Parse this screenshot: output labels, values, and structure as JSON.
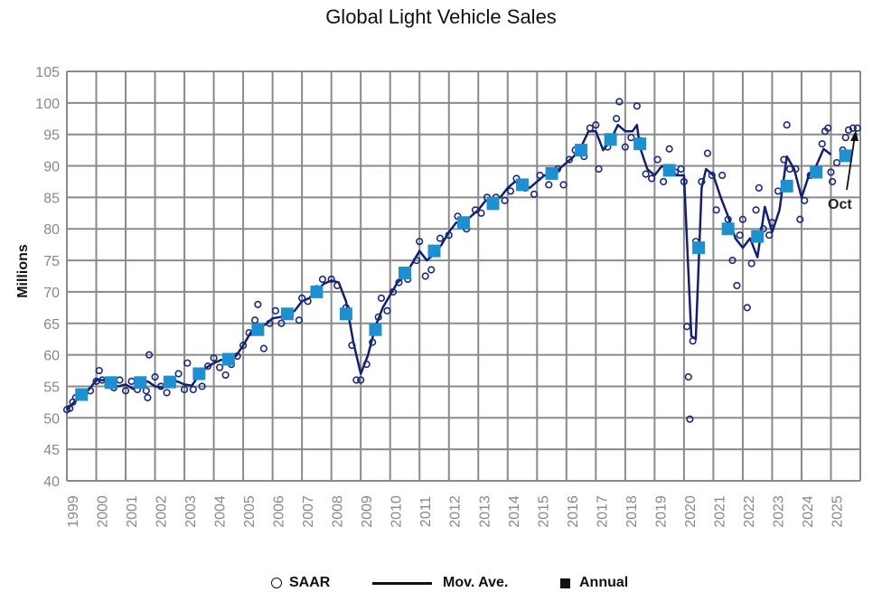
{
  "chart_data": {
    "type": "line",
    "title": "Global Light Vehicle Sales",
    "ylabel": "Millions",
    "xlabel": "",
    "ylim": [
      40,
      105
    ],
    "yticks": [
      40,
      45,
      50,
      55,
      60,
      65,
      70,
      75,
      80,
      85,
      90,
      95,
      100,
      105
    ],
    "xlim": [
      1999,
      2026
    ],
    "xticks": [
      "1999",
      "2000",
      "2001",
      "2002",
      "2003",
      "2004",
      "2005",
      "2006",
      "2007",
      "2008",
      "2009",
      "2010",
      "2011",
      "2012",
      "2013",
      "2014",
      "2015",
      "2016",
      "2017",
      "2018",
      "2019",
      "2020",
      "2021",
      "2022",
      "2023",
      "2024",
      "2025"
    ],
    "grid": true,
    "legend": {
      "placement": "bottom",
      "entries": [
        "SAAR",
        "Mov. Ave.",
        "Annual"
      ]
    },
    "annotation": "Oct",
    "colors": {
      "saar": "#1a2a7a",
      "mov_ave": "#14206e",
      "annual": "#1e90d0",
      "grid": "#8a8a8a"
    },
    "series": [
      {
        "name": "Mov. Ave.",
        "type": "line",
        "points": [
          [
            1999.0,
            51.3
          ],
          [
            1999.25,
            52.5
          ],
          [
            1999.5,
            53.5
          ],
          [
            1999.75,
            54.5
          ],
          [
            2000.0,
            56
          ],
          [
            2000.25,
            56
          ],
          [
            2000.5,
            55.3
          ],
          [
            2000.75,
            55
          ],
          [
            2001.0,
            55.3
          ],
          [
            2001.25,
            54.6
          ],
          [
            2001.5,
            55.3
          ],
          [
            2001.75,
            55.8
          ],
          [
            2002.0,
            55
          ],
          [
            2002.25,
            54.8
          ],
          [
            2002.5,
            55.3
          ],
          [
            2002.75,
            55.8
          ],
          [
            2003.0,
            55.3
          ],
          [
            2003.25,
            55.1
          ],
          [
            2003.5,
            56.8
          ],
          [
            2003.75,
            58
          ],
          [
            2004.0,
            58.7
          ],
          [
            2004.25,
            59.2
          ],
          [
            2004.5,
            59.2
          ],
          [
            2004.75,
            59.8
          ],
          [
            2005.0,
            61.5
          ],
          [
            2005.25,
            63.5
          ],
          [
            2005.5,
            64.5
          ],
          [
            2005.75,
            64.8
          ],
          [
            2006.0,
            65.8
          ],
          [
            2006.25,
            66
          ],
          [
            2006.5,
            66.3
          ],
          [
            2006.75,
            67
          ],
          [
            2007.0,
            68.5
          ],
          [
            2007.25,
            69
          ],
          [
            2007.5,
            70.2
          ],
          [
            2007.75,
            71.3
          ],
          [
            2008.0,
            71.8
          ],
          [
            2008.25,
            71.5
          ],
          [
            2008.5,
            68.5
          ],
          [
            2008.75,
            62
          ],
          [
            2009.0,
            57
          ],
          [
            2009.25,
            60
          ],
          [
            2009.5,
            64.5
          ],
          [
            2009.75,
            67.5
          ],
          [
            2010.0,
            69.5
          ],
          [
            2010.25,
            71.5
          ],
          [
            2010.5,
            72.5
          ],
          [
            2010.75,
            74.5
          ],
          [
            2011.0,
            76.5
          ],
          [
            2011.25,
            75
          ],
          [
            2011.5,
            76
          ],
          [
            2011.75,
            77.5
          ],
          [
            2012.0,
            79.5
          ],
          [
            2012.25,
            81
          ],
          [
            2012.5,
            81
          ],
          [
            2012.75,
            82
          ],
          [
            2013.0,
            83
          ],
          [
            2013.25,
            84.5
          ],
          [
            2013.5,
            84.5
          ],
          [
            2013.75,
            85
          ],
          [
            2014.0,
            86.5
          ],
          [
            2014.25,
            87.5
          ],
          [
            2014.5,
            87
          ],
          [
            2014.75,
            86.5
          ],
          [
            2015.0,
            87.5
          ],
          [
            2015.25,
            88.5
          ],
          [
            2015.5,
            88.5
          ],
          [
            2015.75,
            89.5
          ],
          [
            2016.0,
            90.5
          ],
          [
            2016.25,
            91.5
          ],
          [
            2016.5,
            93
          ],
          [
            2016.75,
            95.5
          ],
          [
            2017.0,
            95.5
          ],
          [
            2017.25,
            92.5
          ],
          [
            2017.5,
            94
          ],
          [
            2017.75,
            96.5
          ],
          [
            2018.0,
            95.5
          ],
          [
            2018.25,
            95.5
          ],
          [
            2018.4,
            96.5
          ],
          [
            2018.5,
            93
          ],
          [
            2018.75,
            89.5
          ],
          [
            2019.0,
            88.5
          ],
          [
            2019.25,
            90
          ],
          [
            2019.5,
            89.5
          ],
          [
            2019.75,
            88.5
          ],
          [
            2020.0,
            88.5
          ],
          [
            2020.25,
            63
          ],
          [
            2020.4,
            62.5
          ],
          [
            2020.6,
            86.5
          ],
          [
            2020.75,
            89.5
          ],
          [
            2021.0,
            88.5
          ],
          [
            2021.25,
            85
          ],
          [
            2021.5,
            82
          ],
          [
            2021.75,
            78.5
          ],
          [
            2022.0,
            77
          ],
          [
            2022.25,
            78.5
          ],
          [
            2022.5,
            75.5
          ],
          [
            2022.75,
            83.5
          ],
          [
            2023.0,
            79.5
          ],
          [
            2023.25,
            83
          ],
          [
            2023.5,
            91.5
          ],
          [
            2023.75,
            89.5
          ],
          [
            2024.0,
            85
          ],
          [
            2024.25,
            88.5
          ],
          [
            2024.5,
            90
          ],
          [
            2024.75,
            92.7
          ],
          [
            2025.0,
            91.8
          ]
        ]
      },
      {
        "name": "SAAR",
        "type": "scatter",
        "points": [
          [
            1999.0,
            51.3
          ],
          [
            1999.1,
            51.5
          ],
          [
            1999.2,
            52.5
          ],
          [
            1999.3,
            53.2
          ],
          [
            1999.6,
            54
          ],
          [
            1999.8,
            54.3
          ],
          [
            2000.0,
            55.8
          ],
          [
            2000.1,
            57.5
          ],
          [
            2000.2,
            56
          ],
          [
            2000.4,
            55.2
          ],
          [
            2000.6,
            54.8
          ],
          [
            2000.8,
            56
          ],
          [
            2001.0,
            54.3
          ],
          [
            2001.2,
            55.8
          ],
          [
            2001.4,
            54.5
          ],
          [
            2001.7,
            54.3
          ],
          [
            2001.75,
            53.2
          ],
          [
            2001.8,
            60
          ],
          [
            2002.0,
            56.5
          ],
          [
            2002.2,
            55
          ],
          [
            2002.4,
            54
          ],
          [
            2002.6,
            56
          ],
          [
            2002.8,
            57
          ],
          [
            2003.0,
            54.5
          ],
          [
            2003.1,
            58.7
          ],
          [
            2003.3,
            54.5
          ],
          [
            2003.6,
            55
          ],
          [
            2003.8,
            58.2
          ],
          [
            2004.0,
            59.5
          ],
          [
            2004.2,
            58
          ],
          [
            2004.4,
            56.8
          ],
          [
            2004.6,
            58.5
          ],
          [
            2004.8,
            59.8
          ],
          [
            2005.0,
            61.5
          ],
          [
            2005.2,
            63.5
          ],
          [
            2005.4,
            65.5
          ],
          [
            2005.5,
            68
          ],
          [
            2005.7,
            61
          ],
          [
            2005.9,
            65
          ],
          [
            2006.1,
            67
          ],
          [
            2006.3,
            65
          ],
          [
            2006.6,
            66.5
          ],
          [
            2006.9,
            65.5
          ],
          [
            2007.0,
            69
          ],
          [
            2007.2,
            68.5
          ],
          [
            2007.5,
            70.5
          ],
          [
            2007.7,
            72
          ],
          [
            2008.0,
            72
          ],
          [
            2008.2,
            71
          ],
          [
            2008.5,
            67.5
          ],
          [
            2008.7,
            61.5
          ],
          [
            2008.85,
            56
          ],
          [
            2009.0,
            56
          ],
          [
            2009.2,
            58.5
          ],
          [
            2009.4,
            62
          ],
          [
            2009.6,
            66
          ],
          [
            2009.7,
            69
          ],
          [
            2009.9,
            67
          ],
          [
            2010.1,
            70
          ],
          [
            2010.3,
            71.5
          ],
          [
            2010.6,
            72
          ],
          [
            2010.9,
            75
          ],
          [
            2011.0,
            78
          ],
          [
            2011.2,
            72.5
          ],
          [
            2011.4,
            73.5
          ],
          [
            2011.7,
            78.5
          ],
          [
            2012.0,
            79
          ],
          [
            2012.3,
            82
          ],
          [
            2012.6,
            80
          ],
          [
            2012.9,
            83
          ],
          [
            2013.1,
            82.5
          ],
          [
            2013.3,
            85
          ],
          [
            2013.6,
            85
          ],
          [
            2013.9,
            84.5
          ],
          [
            2014.1,
            86
          ],
          [
            2014.3,
            88
          ],
          [
            2014.6,
            86.5
          ],
          [
            2014.9,
            85.5
          ],
          [
            2015.1,
            88.5
          ],
          [
            2015.4,
            87
          ],
          [
            2015.7,
            89.5
          ],
          [
            2015.9,
            87
          ],
          [
            2016.1,
            91
          ],
          [
            2016.3,
            92.5
          ],
          [
            2016.6,
            91.5
          ],
          [
            2016.8,
            96
          ],
          [
            2017.0,
            96.5
          ],
          [
            2017.1,
            89.5
          ],
          [
            2017.4,
            93
          ],
          [
            2017.7,
            97.5
          ],
          [
            2017.8,
            100.2
          ],
          [
            2018.0,
            93
          ],
          [
            2018.2,
            94.5
          ],
          [
            2018.4,
            99.5
          ],
          [
            2018.5,
            94
          ],
          [
            2018.7,
            88.7
          ],
          [
            2018.9,
            88
          ],
          [
            2019.1,
            91
          ],
          [
            2019.3,
            87.5
          ],
          [
            2019.5,
            92.7
          ],
          [
            2019.7,
            89
          ],
          [
            2019.9,
            89.5
          ],
          [
            2020.0,
            87.5
          ],
          [
            2020.1,
            64.5
          ],
          [
            2020.15,
            56.5
          ],
          [
            2020.2,
            49.8
          ],
          [
            2020.3,
            62.2
          ],
          [
            2020.4,
            78
          ],
          [
            2020.6,
            87.5
          ],
          [
            2020.8,
            92
          ],
          [
            2020.95,
            88.5
          ],
          [
            2021.1,
            83
          ],
          [
            2021.3,
            88.5
          ],
          [
            2021.5,
            81.5
          ],
          [
            2021.65,
            75
          ],
          [
            2021.8,
            71
          ],
          [
            2021.9,
            79
          ],
          [
            2022.0,
            81.5
          ],
          [
            2022.15,
            67.5
          ],
          [
            2022.3,
            74.5
          ],
          [
            2022.45,
            83
          ],
          [
            2022.55,
            86.5
          ],
          [
            2022.7,
            80
          ],
          [
            2022.9,
            79
          ],
          [
            2023.0,
            81
          ],
          [
            2023.2,
            86
          ],
          [
            2023.4,
            91
          ],
          [
            2023.5,
            96.5
          ],
          [
            2023.6,
            89.5
          ],
          [
            2023.8,
            89.5
          ],
          [
            2023.95,
            81.5
          ],
          [
            2024.1,
            84.5
          ],
          [
            2024.3,
            88.5
          ],
          [
            2024.5,
            89.5
          ],
          [
            2024.7,
            93.5
          ],
          [
            2024.8,
            95.5
          ],
          [
            2024.9,
            96
          ],
          [
            2025.0,
            89
          ],
          [
            2025.05,
            87.5
          ],
          [
            2025.2,
            90.5
          ],
          [
            2025.4,
            92.5
          ],
          [
            2025.5,
            94.5
          ],
          [
            2025.6,
            95.7
          ],
          [
            2025.75,
            96
          ],
          [
            2025.9,
            96
          ]
        ]
      },
      {
        "name": "Annual",
        "type": "scatter-square",
        "points": [
          [
            1999.5,
            53.7
          ],
          [
            2000.5,
            55.6
          ],
          [
            2001.5,
            55.6
          ],
          [
            2002.5,
            55.7
          ],
          [
            2003.5,
            57
          ],
          [
            2004.5,
            59.3
          ],
          [
            2005.5,
            64
          ],
          [
            2006.5,
            66.5
          ],
          [
            2007.5,
            70
          ],
          [
            2008.5,
            66.5
          ],
          [
            2009.5,
            64
          ],
          [
            2010.5,
            73
          ],
          [
            2011.5,
            76.5
          ],
          [
            2012.5,
            81
          ],
          [
            2013.5,
            84
          ],
          [
            2014.5,
            87
          ],
          [
            2015.5,
            88.8
          ],
          [
            2016.5,
            92.5
          ],
          [
            2017.5,
            94.2
          ],
          [
            2018.5,
            93.5
          ],
          [
            2019.5,
            89.3
          ],
          [
            2020.5,
            77
          ],
          [
            2021.5,
            80
          ],
          [
            2022.5,
            78.8
          ],
          [
            2023.5,
            86.8
          ],
          [
            2024.5,
            89
          ],
          [
            2025.5,
            91.6
          ]
        ]
      }
    ]
  }
}
